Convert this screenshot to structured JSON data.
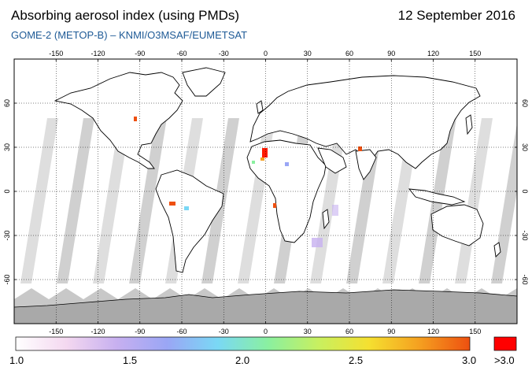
{
  "title": "Absorbing aerosol index (using PMDs)",
  "date": "12 September 2016",
  "subtitle": {
    "instrument": "GOME-2 (METOP-B)",
    "separator": " – ",
    "source": "KNMI/O3MSAF/EUMETSAT"
  },
  "map": {
    "lon_ticks": [
      "-150",
      "-120",
      "-90",
      "-60",
      "-30",
      "0",
      "30",
      "60",
      "90",
      "120",
      "150"
    ],
    "lat_ticks": [
      "60",
      "30",
      "0",
      "-30",
      "-60"
    ],
    "colors": {
      "land_outline": "#000000",
      "swath_gap": "#c8c8c8",
      "antarctica": "#a9a9a9",
      "grid": "#000000"
    }
  },
  "colorbar": {
    "labels": [
      "1.0",
      "1.5",
      "2.0",
      "2.5",
      "3.0"
    ],
    "overflow_label": ">3.0",
    "gradient": [
      "#ffffff",
      "#f4d8f0",
      "#c7b0f0",
      "#9aa6f5",
      "#7ad8f5",
      "#8af0a0",
      "#c8f060",
      "#f5e030",
      "#f5a020",
      "#ee5010"
    ],
    "overflow_color": "#ff0000"
  }
}
